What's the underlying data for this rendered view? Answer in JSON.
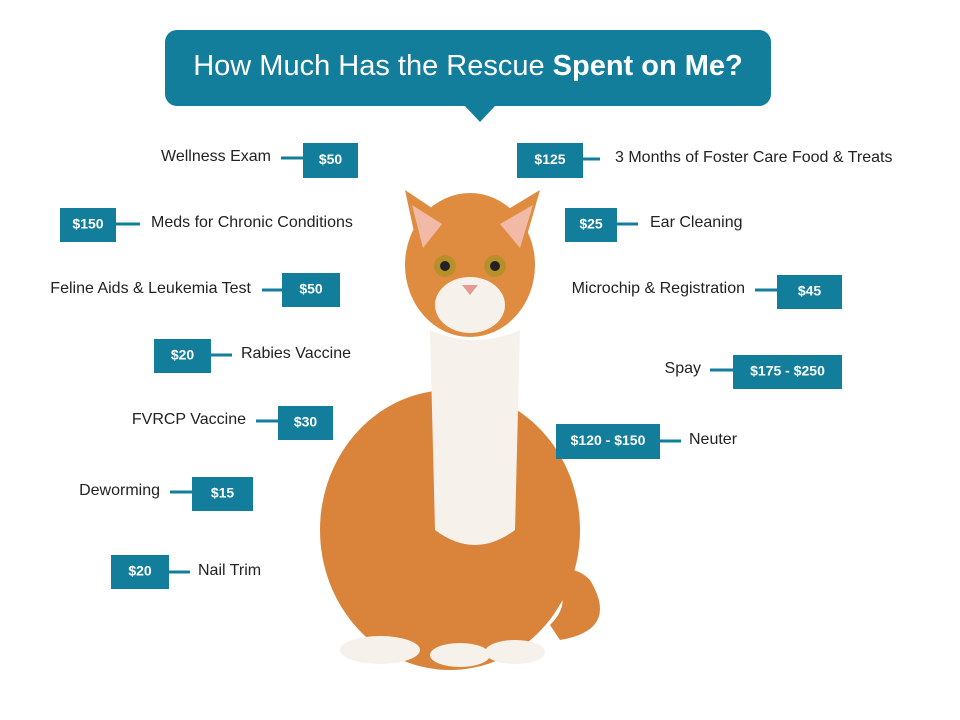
{
  "title": {
    "regular": "How Much Has the Rescue",
    "bold": "Spent on Me?"
  },
  "items": [
    {
      "label": "Wellness Exam",
      "price": "$50"
    },
    {
      "label": "Meds for Chronic Conditions",
      "price": "$150"
    },
    {
      "label": "Feline Aids & Leukemia Test",
      "price": "$50"
    },
    {
      "label": "Rabies Vaccine",
      "price": "$20"
    },
    {
      "label": "FVRCP Vaccine",
      "price": "$30"
    },
    {
      "label": "Deworming",
      "price": "$15"
    },
    {
      "label": "Nail Trim",
      "price": "$20"
    },
    {
      "label": "3 Months of Foster Care Food & Treats",
      "price": "$125"
    },
    {
      "label": "Ear Cleaning",
      "price": "$25"
    },
    {
      "label": "Microchip & Registration",
      "price": "$45"
    },
    {
      "label": "Spay",
      "price": "$175 - $250"
    },
    {
      "label": "Neuter",
      "price": "$120 - $150"
    }
  ]
}
